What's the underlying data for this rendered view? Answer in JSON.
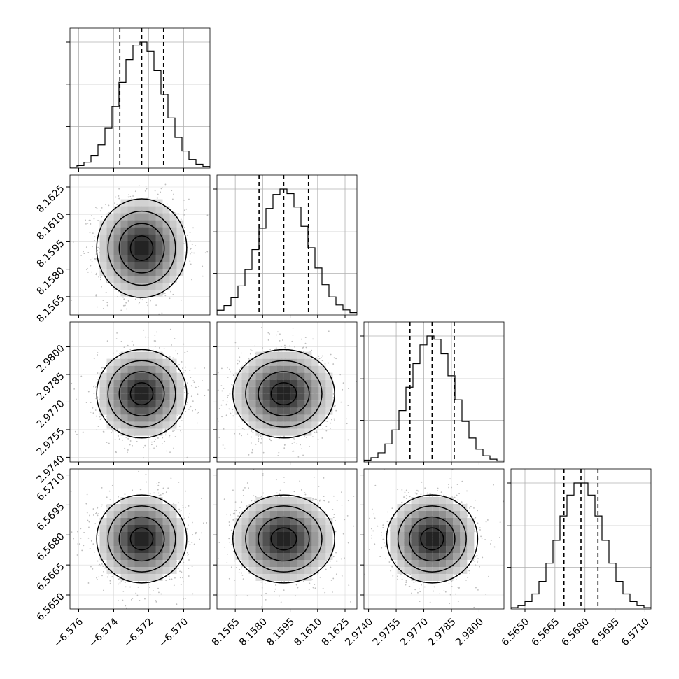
{
  "chart_data": {
    "type": "corner",
    "parameters": [
      {
        "range": [
          -6.5765,
          -6.5685
        ],
        "ticks": [
          -6.576,
          -6.574,
          -6.572,
          -6.57
        ],
        "tick_labels": [
          "−6.576",
          "−6.574",
          "−6.572",
          "−6.570"
        ],
        "mean": -6.5724,
        "sigma": 0.00125,
        "quantiles": [
          -6.57365,
          -6.5724,
          -6.57115
        ]
      },
      {
        "range": [
          8.1555,
          8.16315
        ],
        "ticks": [
          8.1565,
          8.158,
          8.1595,
          8.161,
          8.1625
        ],
        "tick_labels": [
          "8.1565",
          "8.1580",
          "8.1595",
          "8.1610",
          "8.1625"
        ],
        "mean": 8.15915,
        "sigma": 0.00135,
        "quantiles": [
          8.1578,
          8.15915,
          8.1605
        ]
      },
      {
        "range": [
          2.97375,
          2.98135
        ],
        "ticks": [
          2.974,
          2.9755,
          2.977,
          2.9785,
          2.98
        ],
        "tick_labels": [
          "2.9740",
          "2.9755",
          "2.9770",
          "2.9785",
          "2.9800"
        ],
        "mean": 2.97745,
        "sigma": 0.0012,
        "quantiles": [
          2.97625,
          2.97745,
          2.97865
        ]
      },
      {
        "range": [
          6.5643,
          6.5713
        ],
        "ticks": [
          6.565,
          6.5665,
          6.568,
          6.5695,
          6.571
        ],
        "tick_labels": [
          "6.5650",
          "6.5665",
          "6.5680",
          "6.5695",
          "6.5710"
        ],
        "mean": 6.5678,
        "sigma": 0.0011,
        "quantiles": [
          6.56695,
          6.5678,
          6.56865
        ]
      }
    ],
    "histogram_bins": 20,
    "contour_levels": 4,
    "grid": true,
    "xlabel": "",
    "ylabel": "",
    "title": ""
  }
}
